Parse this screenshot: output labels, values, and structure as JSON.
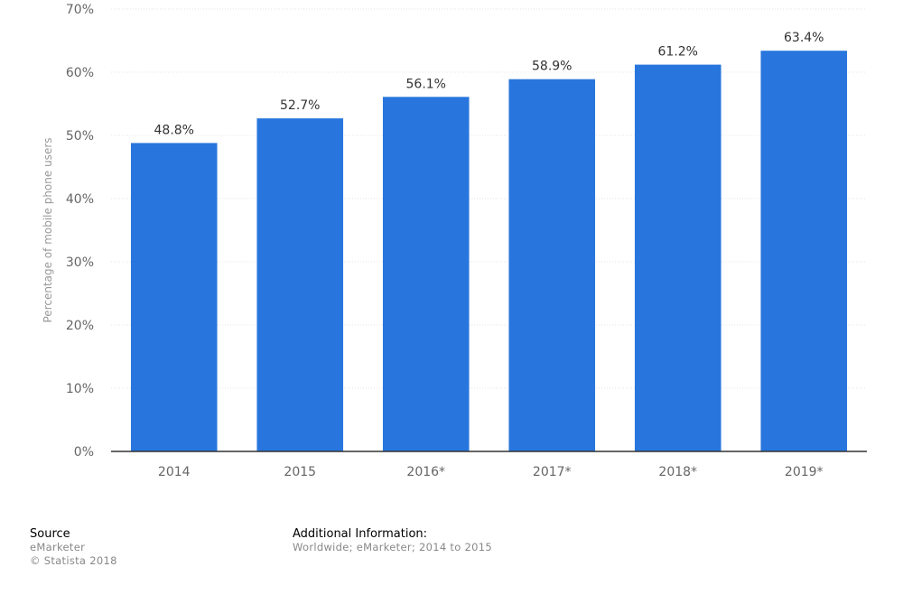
{
  "chart_data": {
    "type": "bar",
    "categories": [
      "2014",
      "2015",
      "2016*",
      "2017*",
      "2018*",
      "2019*"
    ],
    "values": [
      48.8,
      52.7,
      56.1,
      58.9,
      61.2,
      63.4
    ],
    "value_labels": [
      "48.8%",
      "52.7%",
      "56.1%",
      "58.9%",
      "61.2%",
      "63.4%"
    ],
    "ylabel": "Percentage of mobile phone users",
    "ylim": [
      0,
      70
    ],
    "yticks": [
      0,
      10,
      20,
      30,
      40,
      50,
      60,
      70
    ],
    "ytick_labels": [
      "0%",
      "10%",
      "20%",
      "30%",
      "40%",
      "50%",
      "60%",
      "70%"
    ],
    "grid": true,
    "bar_color": "#2876dd"
  },
  "footer": {
    "source_heading": "Source",
    "source_name": "eMarketer",
    "copyright": "© Statista 2018",
    "info_heading": "Additional Information:",
    "info_text": "Worldwide; eMarketer; 2014 to 2015"
  }
}
